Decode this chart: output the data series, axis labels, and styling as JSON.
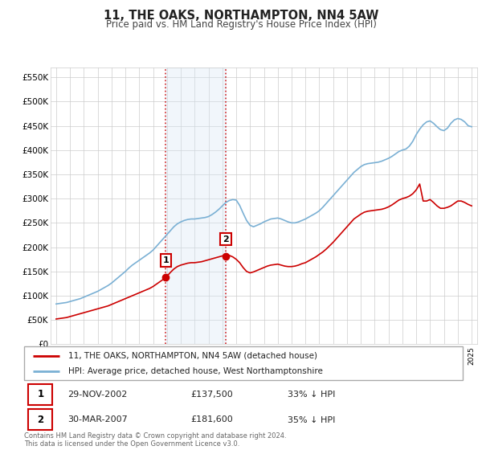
{
  "title": "11, THE OAKS, NORTHAMPTON, NN4 5AW",
  "subtitle": "Price paid vs. HM Land Registry's House Price Index (HPI)",
  "ylim": [
    0,
    570000
  ],
  "yticks": [
    0,
    50000,
    100000,
    150000,
    200000,
    250000,
    300000,
    350000,
    400000,
    450000,
    500000,
    550000
  ],
  "ytick_labels": [
    "£0",
    "£50K",
    "£100K",
    "£150K",
    "£200K",
    "£250K",
    "£300K",
    "£350K",
    "£400K",
    "£450K",
    "£500K",
    "£550K"
  ],
  "bg_color": "#ffffff",
  "grid_color": "#cccccc",
  "sale1_x": 2002.9167,
  "sale1_price": 137500,
  "sale2_x": 2007.25,
  "sale2_price": 181600,
  "legend_line1": "11, THE OAKS, NORTHAMPTON, NN4 5AW (detached house)",
  "legend_line2": "HPI: Average price, detached house, West Northamptonshire",
  "footer": "Contains HM Land Registry data © Crown copyright and database right 2024.\nThis data is licensed under the Open Government Licence v3.0.",
  "line_red": "#cc0000",
  "line_blue": "#7ab0d4",
  "shade_color": "#d8e8f5",
  "hpi_years": [
    1995.0,
    1995.25,
    1995.5,
    1995.75,
    1996.0,
    1996.25,
    1996.5,
    1996.75,
    1997.0,
    1997.25,
    1997.5,
    1997.75,
    1998.0,
    1998.25,
    1998.5,
    1998.75,
    1999.0,
    1999.25,
    1999.5,
    1999.75,
    2000.0,
    2000.25,
    2000.5,
    2000.75,
    2001.0,
    2001.25,
    2001.5,
    2001.75,
    2002.0,
    2002.25,
    2002.5,
    2002.75,
    2003.0,
    2003.25,
    2003.5,
    2003.75,
    2004.0,
    2004.25,
    2004.5,
    2004.75,
    2005.0,
    2005.25,
    2005.5,
    2005.75,
    2006.0,
    2006.25,
    2006.5,
    2006.75,
    2007.0,
    2007.25,
    2007.5,
    2007.75,
    2008.0,
    2008.25,
    2008.5,
    2008.75,
    2009.0,
    2009.25,
    2009.5,
    2009.75,
    2010.0,
    2010.25,
    2010.5,
    2010.75,
    2011.0,
    2011.25,
    2011.5,
    2011.75,
    2012.0,
    2012.25,
    2012.5,
    2012.75,
    2013.0,
    2013.25,
    2013.5,
    2013.75,
    2014.0,
    2014.25,
    2014.5,
    2014.75,
    2015.0,
    2015.25,
    2015.5,
    2015.75,
    2016.0,
    2016.25,
    2016.5,
    2016.75,
    2017.0,
    2017.25,
    2017.5,
    2017.75,
    2018.0,
    2018.25,
    2018.5,
    2018.75,
    2019.0,
    2019.25,
    2019.5,
    2019.75,
    2020.0,
    2020.25,
    2020.5,
    2020.75,
    2021.0,
    2021.25,
    2021.5,
    2021.75,
    2022.0,
    2022.25,
    2022.5,
    2022.75,
    2023.0,
    2023.25,
    2023.5,
    2023.75,
    2024.0,
    2024.25,
    2024.5,
    2024.75,
    2025.0
  ],
  "hpi_values": [
    83000,
    84000,
    85000,
    86000,
    88000,
    90000,
    92000,
    94000,
    97000,
    100000,
    103000,
    106000,
    109000,
    113000,
    117000,
    121000,
    126000,
    132000,
    138000,
    144000,
    150000,
    157000,
    163000,
    168000,
    173000,
    178000,
    183000,
    188000,
    194000,
    202000,
    210000,
    218000,
    226000,
    234000,
    242000,
    248000,
    252000,
    255000,
    257000,
    258000,
    258000,
    259000,
    260000,
    261000,
    263000,
    267000,
    272000,
    278000,
    285000,
    292000,
    296000,
    298000,
    297000,
    286000,
    270000,
    255000,
    245000,
    242000,
    245000,
    248000,
    252000,
    255000,
    258000,
    259000,
    260000,
    258000,
    255000,
    252000,
    250000,
    250000,
    252000,
    255000,
    258000,
    262000,
    266000,
    270000,
    275000,
    282000,
    290000,
    298000,
    306000,
    314000,
    322000,
    330000,
    338000,
    346000,
    354000,
    360000,
    366000,
    370000,
    372000,
    373000,
    374000,
    375000,
    377000,
    380000,
    383000,
    387000,
    392000,
    397000,
    400000,
    402000,
    408000,
    418000,
    432000,
    443000,
    452000,
    458000,
    460000,
    455000,
    448000,
    442000,
    440000,
    445000,
    455000,
    462000,
    465000,
    463000,
    458000,
    450000,
    448000
  ],
  "red_years": [
    1995.0,
    1995.25,
    1995.5,
    1995.75,
    1996.0,
    1996.25,
    1996.5,
    1996.75,
    1997.0,
    1997.25,
    1997.5,
    1997.75,
    1998.0,
    1998.25,
    1998.5,
    1998.75,
    1999.0,
    1999.25,
    1999.5,
    1999.75,
    2000.0,
    2000.25,
    2000.5,
    2000.75,
    2001.0,
    2001.25,
    2001.5,
    2001.75,
    2002.0,
    2002.25,
    2002.5,
    2002.75,
    2002.9167,
    2003.25,
    2003.5,
    2003.75,
    2004.0,
    2004.25,
    2004.5,
    2004.75,
    2005.0,
    2005.25,
    2005.5,
    2005.75,
    2006.0,
    2006.25,
    2006.5,
    2006.75,
    2007.0,
    2007.25,
    2007.5,
    2007.75,
    2008.0,
    2008.25,
    2008.5,
    2008.75,
    2009.0,
    2009.25,
    2009.5,
    2009.75,
    2010.0,
    2010.25,
    2010.5,
    2010.75,
    2011.0,
    2011.25,
    2011.5,
    2011.75,
    2012.0,
    2012.25,
    2012.5,
    2012.75,
    2013.0,
    2013.25,
    2013.5,
    2013.75,
    2014.0,
    2014.25,
    2014.5,
    2014.75,
    2015.0,
    2015.25,
    2015.5,
    2015.75,
    2016.0,
    2016.25,
    2016.5,
    2016.75,
    2017.0,
    2017.25,
    2017.5,
    2017.75,
    2018.0,
    2018.25,
    2018.5,
    2018.75,
    2019.0,
    2019.25,
    2019.5,
    2019.75,
    2020.0,
    2020.25,
    2020.5,
    2020.75,
    2021.0,
    2021.25,
    2021.5,
    2021.75,
    2022.0,
    2022.25,
    2022.5,
    2022.75,
    2023.0,
    2023.25,
    2023.5,
    2023.75,
    2024.0,
    2024.25,
    2024.5,
    2024.75,
    2025.0
  ],
  "red_values": [
    52000,
    53000,
    54000,
    55000,
    57000,
    59000,
    61000,
    63000,
    65000,
    67000,
    69000,
    71000,
    73000,
    75000,
    77000,
    79000,
    82000,
    85000,
    88000,
    91000,
    94000,
    97000,
    100000,
    103000,
    106000,
    109000,
    112000,
    115000,
    119000,
    124000,
    129000,
    134000,
    137500,
    148000,
    155000,
    160000,
    163000,
    165000,
    167000,
    168000,
    168000,
    169000,
    170000,
    172000,
    174000,
    176000,
    178000,
    180000,
    182000,
    181600,
    183000,
    180000,
    175000,
    168000,
    158000,
    150000,
    147000,
    149000,
    152000,
    155000,
    158000,
    161000,
    163000,
    164000,
    165000,
    163000,
    161000,
    160000,
    160000,
    161000,
    163000,
    166000,
    168000,
    172000,
    176000,
    180000,
    185000,
    190000,
    196000,
    203000,
    210000,
    218000,
    226000,
    234000,
    242000,
    250000,
    258000,
    263000,
    268000,
    272000,
    274000,
    275000,
    276000,
    277000,
    278000,
    280000,
    283000,
    287000,
    292000,
    297000,
    300000,
    302000,
    305000,
    310000,
    318000,
    330000,
    295000,
    295000,
    298000,
    292000,
    285000,
    280000,
    280000,
    282000,
    285000,
    290000,
    295000,
    295000,
    292000,
    288000,
    285000
  ]
}
